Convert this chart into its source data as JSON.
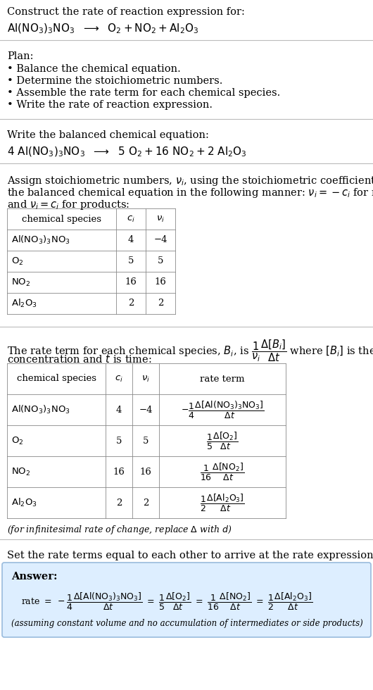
{
  "bg_color": "#ffffff",
  "text_color": "#000000",
  "line_color": "#bbbbbb",
  "answer_box_color": "#ddeeff",
  "answer_box_border": "#99bbdd",
  "fontsize_body": 10.5,
  "fontsize_eq": 11,
  "fontsize_table": 9.5,
  "fontsize_small": 9.0,
  "plan_items": [
    "• Balance the chemical equation.",
    "• Determine the stoichiometric numbers.",
    "• Assemble the rate term for each chemical species.",
    "• Write the rate of reaction expression."
  ],
  "footer_note": "(assuming constant volume and no accumulation of intermediates or side products)"
}
